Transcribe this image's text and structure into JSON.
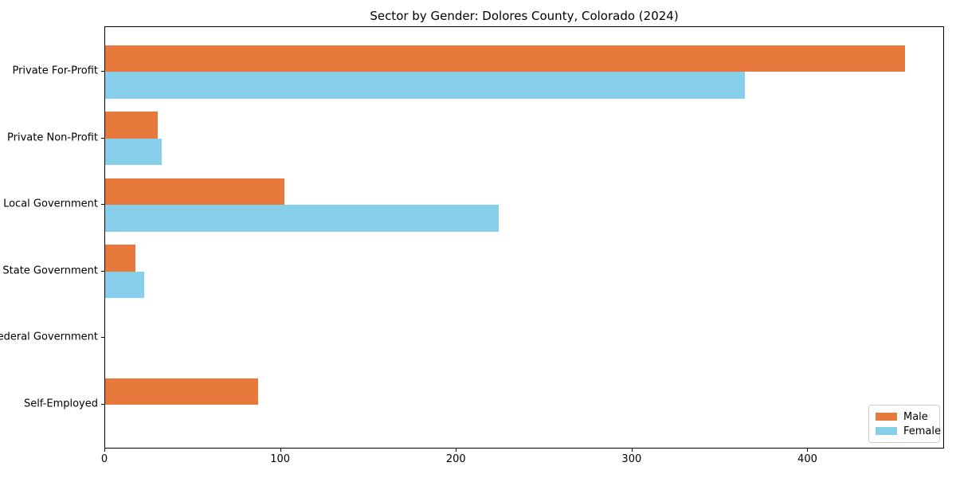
{
  "title": "Sector by Gender: Dolores County, Colorado (2024)",
  "colors": {
    "male": "#e8793d",
    "female": "#87ceeb",
    "spine": "#000000",
    "legend_border": "#cccccc",
    "background": "#ffffff",
    "text": "#000000"
  },
  "legend": {
    "position": "lower right",
    "items": [
      {
        "label": "Male",
        "color": "#e8793d"
      },
      {
        "label": "Female",
        "color": "#87ceeb"
      }
    ]
  },
  "chart_data": {
    "type": "bar",
    "orientation": "horizontal",
    "title": "Sector by Gender: Dolores County, Colorado (2024)",
    "categories": [
      "Private For-Profit",
      "Private Non-Profit",
      "Local Government",
      "State Government",
      "Federal Government",
      "Self-Employed"
    ],
    "series": [
      {
        "name": "Male",
        "color": "#e8793d",
        "values": [
          455,
          30,
          102,
          17,
          0,
          87
        ]
      },
      {
        "name": "Female",
        "color": "#87ceeb",
        "values": [
          364,
          32,
          224,
          22,
          0,
          0
        ]
      }
    ],
    "xlabel": "",
    "ylabel": "",
    "xlim": [
      0,
      477.75
    ],
    "xticks": [
      0,
      100,
      200,
      300,
      400
    ],
    "grid": false,
    "legend_position": "lower right"
  }
}
